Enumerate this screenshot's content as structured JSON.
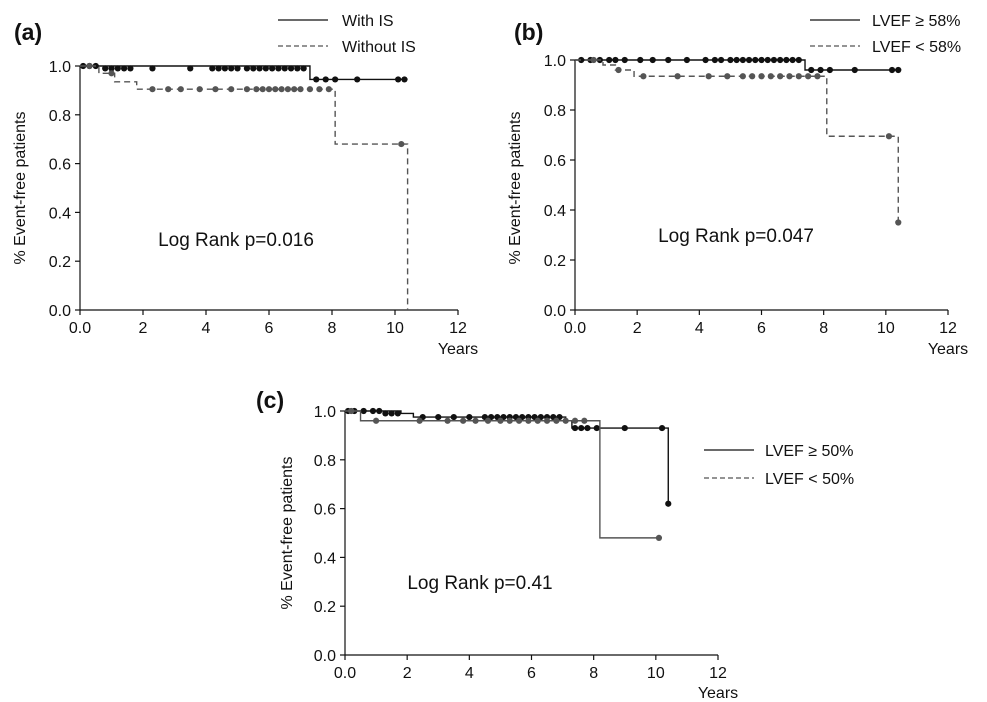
{
  "chart_data": [
    {
      "type": "line",
      "panel": "(a)",
      "ylabel": "% Event-free patients",
      "xlabel": "Years",
      "xlim": [
        0,
        12
      ],
      "ylim": [
        0,
        1
      ],
      "xticks": [
        "0.0",
        "2",
        "4",
        "6",
        "8",
        "10",
        "12"
      ],
      "yticks": [
        "0.0",
        "0.2",
        "0.4",
        "0.6",
        "0.8",
        "1.0"
      ],
      "legend_position": "top-right",
      "annotation": "Log Rank p=0.016",
      "series": [
        {
          "name": "With IS",
          "style": "solid",
          "color": "#111111",
          "steps": [
            [
              0,
              1.0
            ],
            [
              7.3,
              0.945
            ],
            [
              10.4,
              0.945
            ]
          ],
          "censored": [
            [
              0.1,
              1.0
            ],
            [
              0.3,
              1.0
            ],
            [
              0.5,
              1.0
            ],
            [
              0.8,
              0.99
            ],
            [
              1.0,
              0.99
            ],
            [
              1.2,
              0.99
            ],
            [
              1.4,
              0.99
            ],
            [
              1.6,
              0.99
            ],
            [
              2.3,
              0.99
            ],
            [
              3.5,
              0.99
            ],
            [
              4.2,
              0.99
            ],
            [
              4.4,
              0.99
            ],
            [
              4.6,
              0.99
            ],
            [
              4.8,
              0.99
            ],
            [
              5.0,
              0.99
            ],
            [
              5.3,
              0.99
            ],
            [
              5.5,
              0.99
            ],
            [
              5.7,
              0.99
            ],
            [
              5.9,
              0.99
            ],
            [
              6.1,
              0.99
            ],
            [
              6.3,
              0.99
            ],
            [
              6.5,
              0.99
            ],
            [
              6.7,
              0.99
            ],
            [
              6.9,
              0.99
            ],
            [
              7.1,
              0.99
            ],
            [
              7.5,
              0.945
            ],
            [
              7.8,
              0.945
            ],
            [
              8.1,
              0.945
            ],
            [
              8.8,
              0.945
            ],
            [
              10.1,
              0.945
            ],
            [
              10.3,
              0.945
            ]
          ]
        },
        {
          "name": "Without IS",
          "style": "dashed",
          "color": "#555555",
          "steps": [
            [
              0,
              1.0
            ],
            [
              0.6,
              0.97
            ],
            [
              1.1,
              0.935
            ],
            [
              1.8,
              0.905
            ],
            [
              8.1,
              0.68
            ],
            [
              10.4,
              0.0
            ]
          ],
          "censored": [
            [
              0.3,
              1.0
            ],
            [
              1.0,
              0.97
            ],
            [
              2.3,
              0.905
            ],
            [
              2.8,
              0.905
            ],
            [
              3.2,
              0.905
            ],
            [
              3.8,
              0.905
            ],
            [
              4.3,
              0.905
            ],
            [
              4.8,
              0.905
            ],
            [
              5.3,
              0.905
            ],
            [
              5.6,
              0.905
            ],
            [
              5.8,
              0.905
            ],
            [
              6.0,
              0.905
            ],
            [
              6.2,
              0.905
            ],
            [
              6.4,
              0.905
            ],
            [
              6.6,
              0.905
            ],
            [
              6.8,
              0.905
            ],
            [
              7.0,
              0.905
            ],
            [
              7.3,
              0.905
            ],
            [
              7.6,
              0.905
            ],
            [
              7.9,
              0.905
            ],
            [
              10.2,
              0.68
            ]
          ]
        }
      ]
    },
    {
      "type": "line",
      "panel": "(b)",
      "ylabel": "% Event-free patients",
      "xlabel": "Years",
      "xlim": [
        0,
        12
      ],
      "ylim": [
        0,
        1
      ],
      "xticks": [
        "0.0",
        "2",
        "4",
        "6",
        "8",
        "10",
        "12"
      ],
      "yticks": [
        "0.0",
        "0.2",
        "0.4",
        "0.6",
        "0.8",
        "1.0"
      ],
      "legend_position": "top-right",
      "annotation": "Log Rank p=0.047",
      "series": [
        {
          "name": "LVEF ≥ 58%",
          "style": "solid",
          "color": "#111111",
          "steps": [
            [
              0,
              1.0
            ],
            [
              7.4,
              0.96
            ],
            [
              10.4,
              0.96
            ]
          ],
          "censored": [
            [
              0.2,
              1.0
            ],
            [
              0.5,
              1.0
            ],
            [
              0.8,
              1.0
            ],
            [
              1.1,
              1.0
            ],
            [
              1.3,
              1.0
            ],
            [
              1.6,
              1.0
            ],
            [
              2.1,
              1.0
            ],
            [
              2.5,
              1.0
            ],
            [
              3.0,
              1.0
            ],
            [
              3.6,
              1.0
            ],
            [
              4.2,
              1.0
            ],
            [
              4.5,
              1.0
            ],
            [
              4.7,
              1.0
            ],
            [
              5.0,
              1.0
            ],
            [
              5.2,
              1.0
            ],
            [
              5.4,
              1.0
            ],
            [
              5.6,
              1.0
            ],
            [
              5.8,
              1.0
            ],
            [
              6.0,
              1.0
            ],
            [
              6.2,
              1.0
            ],
            [
              6.4,
              1.0
            ],
            [
              6.6,
              1.0
            ],
            [
              6.8,
              1.0
            ],
            [
              7.0,
              1.0
            ],
            [
              7.2,
              1.0
            ],
            [
              7.6,
              0.96
            ],
            [
              7.9,
              0.96
            ],
            [
              8.2,
              0.96
            ],
            [
              9.0,
              0.96
            ],
            [
              10.2,
              0.96
            ],
            [
              10.4,
              0.96
            ]
          ]
        },
        {
          "name": "LVEF < 58%",
          "style": "dashed",
          "color": "#555555",
          "steps": [
            [
              0,
              1.0
            ],
            [
              0.9,
              0.98
            ],
            [
              1.3,
              0.96
            ],
            [
              1.9,
              0.935
            ],
            [
              8.1,
              0.695
            ],
            [
              10.4,
              0.35
            ]
          ],
          "censored": [
            [
              0.6,
              1.0
            ],
            [
              1.4,
              0.96
            ],
            [
              2.2,
              0.935
            ],
            [
              3.3,
              0.935
            ],
            [
              4.3,
              0.935
            ],
            [
              4.9,
              0.935
            ],
            [
              5.4,
              0.935
            ],
            [
              5.7,
              0.935
            ],
            [
              6.0,
              0.935
            ],
            [
              6.3,
              0.935
            ],
            [
              6.6,
              0.935
            ],
            [
              6.9,
              0.935
            ],
            [
              7.2,
              0.935
            ],
            [
              7.5,
              0.935
            ],
            [
              7.8,
              0.935
            ],
            [
              10.1,
              0.695
            ],
            [
              10.4,
              0.35
            ]
          ]
        }
      ]
    },
    {
      "type": "line",
      "panel": "(c)",
      "ylabel": "% Event-free patients",
      "xlabel": "Years",
      "xlim": [
        0,
        12
      ],
      "ylim": [
        0,
        1
      ],
      "xticks": [
        "0.0",
        "2",
        "4",
        "6",
        "8",
        "10",
        "12"
      ],
      "yticks": [
        "0.0",
        "0.2",
        "0.4",
        "0.6",
        "0.8",
        "1.0"
      ],
      "legend_position": "right",
      "annotation": "Log Rank p=0.41",
      "series": [
        {
          "name": "LVEF ≥ 50%",
          "style": "solid",
          "color": "#111111",
          "steps": [
            [
              0,
              1.0
            ],
            [
              1.8,
              0.99
            ],
            [
              2.2,
              0.975
            ],
            [
              7.1,
              0.96
            ],
            [
              7.3,
              0.93
            ],
            [
              10.4,
              0.62
            ]
          ],
          "censored": [
            [
              0.1,
              1.0
            ],
            [
              0.3,
              1.0
            ],
            [
              0.6,
              1.0
            ],
            [
              0.9,
              1.0
            ],
            [
              1.1,
              1.0
            ],
            [
              1.3,
              0.99
            ],
            [
              1.5,
              0.99
            ],
            [
              1.7,
              0.99
            ],
            [
              2.5,
              0.975
            ],
            [
              3.0,
              0.975
            ],
            [
              3.5,
              0.975
            ],
            [
              4.0,
              0.975
            ],
            [
              4.5,
              0.975
            ],
            [
              4.7,
              0.975
            ],
            [
              4.9,
              0.975
            ],
            [
              5.1,
              0.975
            ],
            [
              5.3,
              0.975
            ],
            [
              5.5,
              0.975
            ],
            [
              5.7,
              0.975
            ],
            [
              5.9,
              0.975
            ],
            [
              6.1,
              0.975
            ],
            [
              6.3,
              0.975
            ],
            [
              6.5,
              0.975
            ],
            [
              6.7,
              0.975
            ],
            [
              6.9,
              0.975
            ],
            [
              7.4,
              0.93
            ],
            [
              7.6,
              0.93
            ],
            [
              7.8,
              0.93
            ],
            [
              8.1,
              0.93
            ],
            [
              9.0,
              0.93
            ],
            [
              10.2,
              0.93
            ],
            [
              10.4,
              0.62
            ]
          ]
        },
        {
          "name": "LVEF < 50%",
          "style": "solid",
          "color": "#555555",
          "steps": [
            [
              0,
              1.0
            ],
            [
              0.5,
              0.96
            ],
            [
              8.2,
              0.48
            ],
            [
              10.1,
              0.48
            ]
          ],
          "censored": [
            [
              0.2,
              1.0
            ],
            [
              1.0,
              0.96
            ],
            [
              2.4,
              0.96
            ],
            [
              3.3,
              0.96
            ],
            [
              3.8,
              0.96
            ],
            [
              4.2,
              0.96
            ],
            [
              4.6,
              0.96
            ],
            [
              5.0,
              0.96
            ],
            [
              5.3,
              0.96
            ],
            [
              5.6,
              0.96
            ],
            [
              5.9,
              0.96
            ],
            [
              6.2,
              0.96
            ],
            [
              6.5,
              0.96
            ],
            [
              6.8,
              0.96
            ],
            [
              7.1,
              0.96
            ],
            [
              7.4,
              0.96
            ],
            [
              7.7,
              0.96
            ],
            [
              10.1,
              0.48
            ]
          ]
        }
      ]
    }
  ]
}
